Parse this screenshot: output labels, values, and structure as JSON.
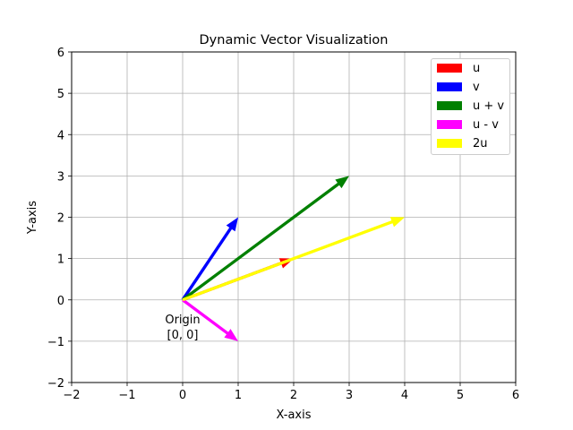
{
  "chart_data": {
    "type": "vector",
    "title": "Dynamic Vector Visualization",
    "xlabel": "X-axis",
    "ylabel": "Y-axis",
    "xlim": [
      -2,
      6
    ],
    "ylim": [
      -2,
      6
    ],
    "xticks": [
      -2,
      -1,
      0,
      1,
      2,
      3,
      4,
      5,
      6
    ],
    "yticks": [
      -2,
      -1,
      0,
      1,
      2,
      3,
      4,
      5,
      6
    ],
    "xtick_labels": [
      "−2",
      "−1",
      "0",
      "1",
      "2",
      "3",
      "4",
      "5",
      "6"
    ],
    "ytick_labels": [
      "−2",
      "−1",
      "0",
      "1",
      "2",
      "3",
      "4",
      "5",
      "6"
    ],
    "grid": true,
    "legend_position": "top-right",
    "series": [
      {
        "name": "u",
        "origin": [
          0,
          0
        ],
        "vector": [
          2,
          1
        ],
        "color": "#ff0000"
      },
      {
        "name": "v",
        "origin": [
          0,
          0
        ],
        "vector": [
          1,
          2
        ],
        "color": "#0000ff"
      },
      {
        "name": "u + v",
        "origin": [
          0,
          0
        ],
        "vector": [
          3,
          3
        ],
        "color": "#008000"
      },
      {
        "name": "u - v",
        "origin": [
          0,
          0
        ],
        "vector": [
          1,
          -1
        ],
        "color": "#ff00ff"
      },
      {
        "name": "2u",
        "origin": [
          0,
          0
        ],
        "vector": [
          4,
          2
        ],
        "color": "#ffff00"
      }
    ],
    "annotations": [
      {
        "lines": [
          "Origin",
          "[0, 0]"
        ],
        "x": 0,
        "y": 0
      }
    ]
  }
}
